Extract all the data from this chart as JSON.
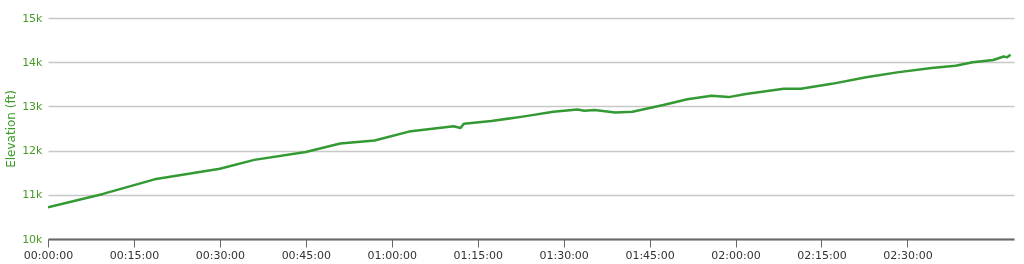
{
  "chart_data": {
    "type": "line",
    "ylabel": "Elevation (ft)",
    "x": [
      0,
      0.16,
      0.31,
      0.5,
      0.6,
      0.75,
      0.85,
      0.95,
      1.05,
      1.18,
      1.2,
      1.21,
      1.29,
      1.39,
      1.47,
      1.54,
      1.56,
      1.59,
      1.65,
      1.7,
      1.79,
      1.86,
      1.93,
      1.98,
      2.03,
      2.14,
      2.19,
      2.28,
      2.38,
      2.47,
      2.57,
      2.64,
      2.69,
      2.75,
      2.78,
      2.79,
      2.8
    ],
    "series": [
      {
        "color": "#339933",
        "values": [
          10720,
          11020,
          11350,
          11590,
          11790,
          11970,
          12160,
          12230,
          12430,
          12550,
          12510,
          12610,
          12670,
          12780,
          12880,
          12930,
          12900,
          12920,
          12860,
          12880,
          13030,
          13160,
          13240,
          13210,
          13280,
          13400,
          13400,
          13510,
          13660,
          13770,
          13870,
          13920,
          14000,
          14050,
          14130,
          14110,
          14170
        ]
      }
    ],
    "xlim": [
      0,
      2.81
    ],
    "xticks": [
      {
        "value": 0,
        "label": "00:00:00"
      },
      {
        "value": 0.25,
        "label": "00:15:00"
      },
      {
        "value": 0.5,
        "label": "00:30:00"
      },
      {
        "value": 0.75,
        "label": "00:45:00"
      },
      {
        "value": 1,
        "label": "01:00:00"
      },
      {
        "value": 1.25,
        "label": "01:15:00"
      },
      {
        "value": 1.5,
        "label": "01:30:00"
      },
      {
        "value": 1.75,
        "label": "01:45:00"
      },
      {
        "value": 2,
        "label": "02:00:00"
      },
      {
        "value": 2.25,
        "label": "02:15:00"
      },
      {
        "value": 2.5,
        "label": "02:30:00"
      }
    ],
    "ylim": [
      10000,
      15000
    ],
    "yticks": [
      {
        "value": 10000,
        "label": "10k"
      },
      {
        "value": 11000,
        "label": "11k"
      },
      {
        "value": 12000,
        "label": "12k"
      },
      {
        "value": 13000,
        "label": "13k"
      },
      {
        "value": 14000,
        "label": "14k"
      },
      {
        "value": 15000,
        "label": "15k"
      }
    ],
    "grid": "y",
    "marker": "none",
    "line_style": "solid"
  }
}
